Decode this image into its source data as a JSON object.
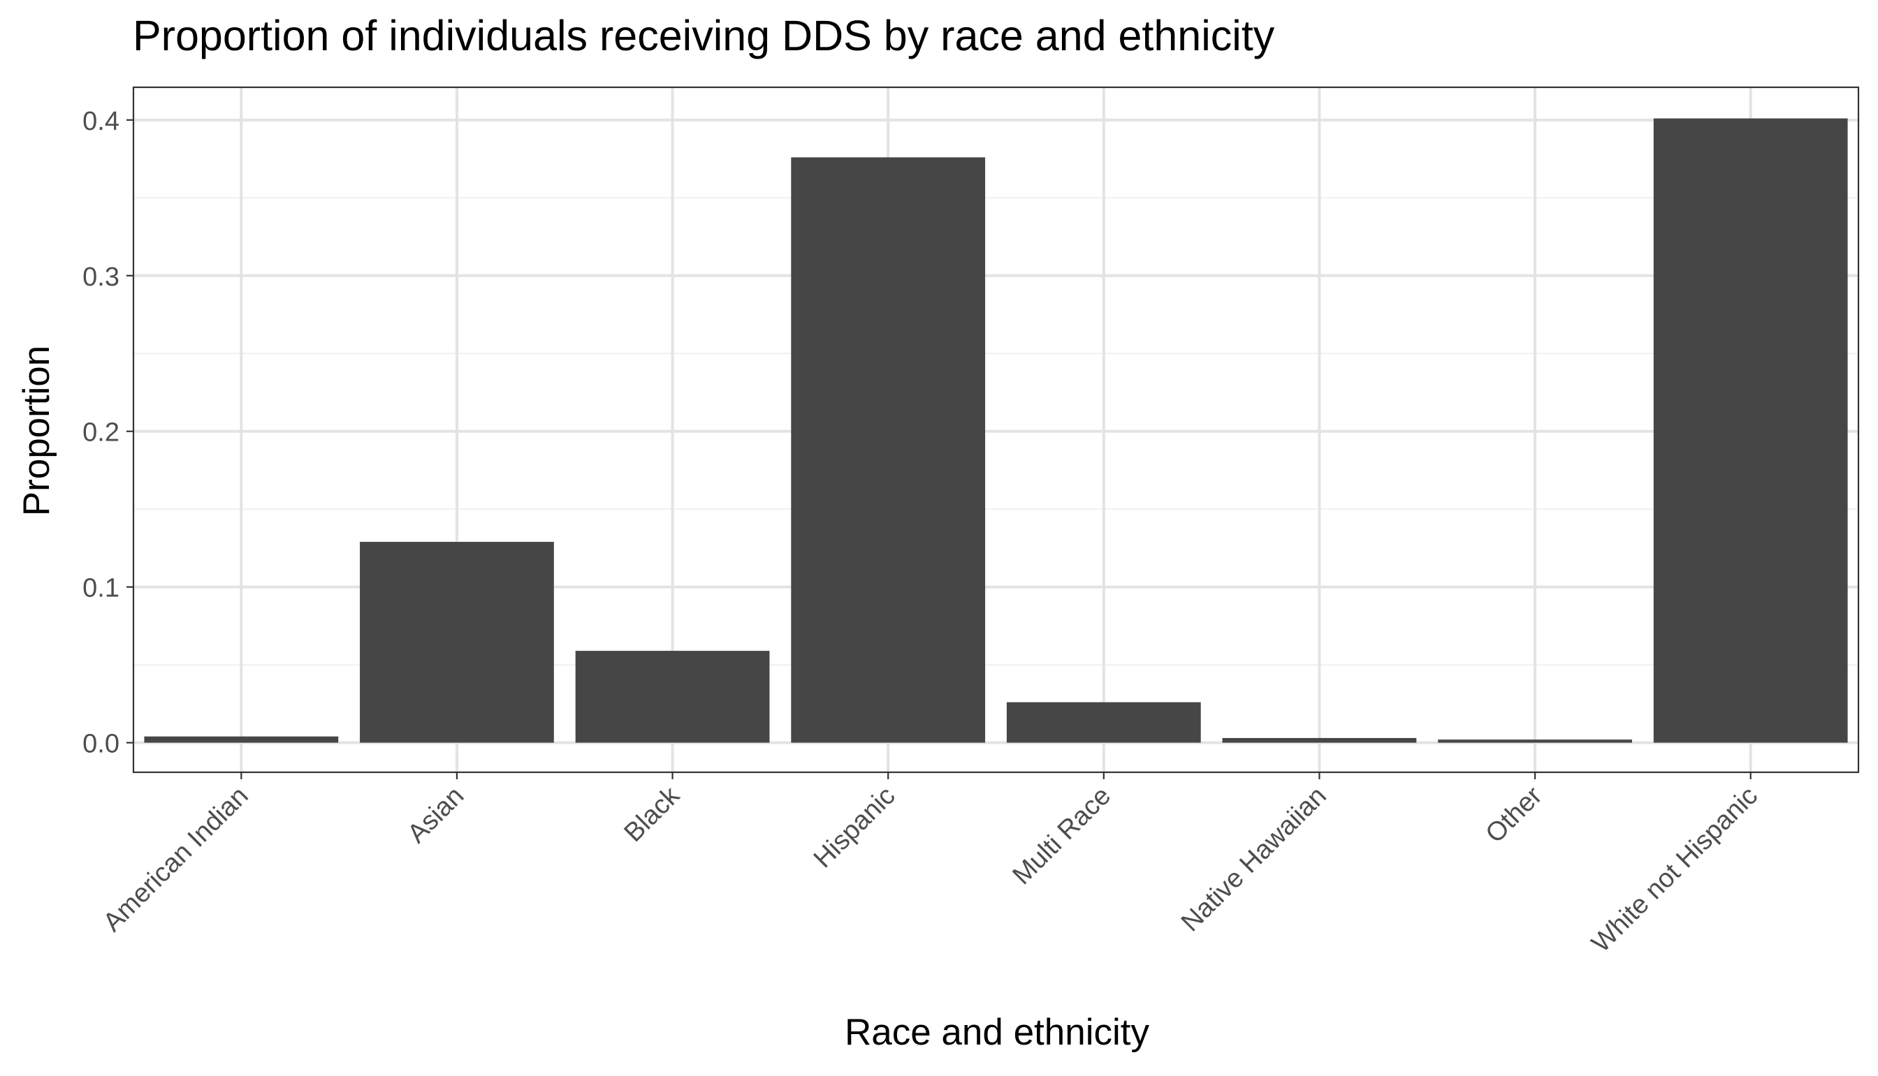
{
  "chart_data": {
    "type": "bar",
    "title": "Proportion of individuals receiving DDS by race and ethnicity",
    "xlabel": "Race and ethnicity",
    "ylabel": "Proportion",
    "categories": [
      "American Indian",
      "Asian",
      "Black",
      "Hispanic",
      "Multi Race",
      "Native Hawaiian",
      "Other",
      "White not Hispanic"
    ],
    "values": [
      0.004,
      0.129,
      0.059,
      0.376,
      0.026,
      0.003,
      0.002,
      0.401
    ],
    "ylim": [
      -0.019,
      0.421
    ],
    "yticks": [
      0.0,
      0.1,
      0.2,
      0.3,
      0.4
    ],
    "ytick_labels": [
      "0.0",
      "0.1",
      "0.2",
      "0.3",
      "0.4"
    ],
    "grid": true,
    "legend": "none",
    "colors": {
      "bar": "#464646",
      "grid_major": "#e3e3e3",
      "grid_minor": "#f0f0f0",
      "panel_border": "#333333",
      "tick_text": "#4d4d4d",
      "title_text": "#000000"
    }
  }
}
